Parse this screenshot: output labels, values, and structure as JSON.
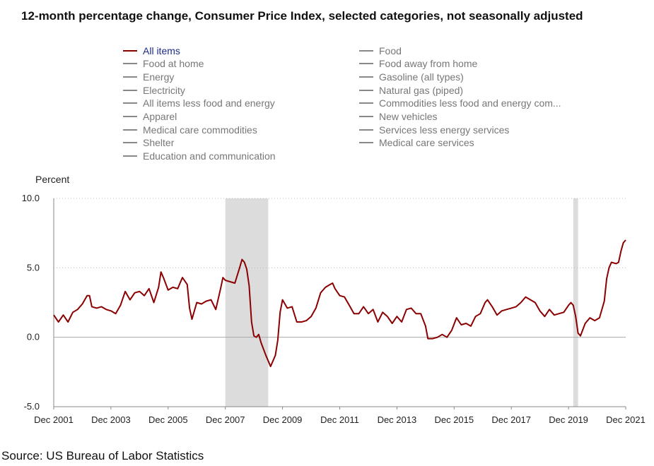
{
  "page": {
    "title": "12-month percentage change, Consumer Price Index, selected categories, not seasonally adjusted",
    "source": "Source: US Bureau of Labor Statistics"
  },
  "legend": {
    "items": [
      {
        "label": "All items",
        "active": true
      },
      {
        "label": "Food at home",
        "active": false
      },
      {
        "label": "Energy",
        "active": false
      },
      {
        "label": "Electricity",
        "active": false
      },
      {
        "label": "All items less food and energy",
        "active": false
      },
      {
        "label": "Apparel",
        "active": false
      },
      {
        "label": "Medical care commodities",
        "active": false
      },
      {
        "label": "Shelter",
        "active": false
      },
      {
        "label": "Education and communication",
        "active": false
      },
      {
        "label": "Food",
        "active": false
      },
      {
        "label": "Food away from home",
        "active": false
      },
      {
        "label": "Gasoline (all types)",
        "active": false
      },
      {
        "label": "Natural gas (piped)",
        "active": false
      },
      {
        "label": "Commodities less food and energy com...",
        "active": false
      },
      {
        "label": "New vehicles",
        "active": false
      },
      {
        "label": "Services less energy services",
        "active": false
      },
      {
        "label": "Medical care services",
        "active": false
      }
    ]
  },
  "colors": {
    "series": "#8b0000",
    "recession": "#dcdcdc",
    "legend_active_text": "#1c2a8c",
    "legend_inactive": "#888888"
  },
  "chart_data": {
    "type": "line",
    "ylabel": "Percent",
    "xlabel": "",
    "ylim": [
      -5.0,
      10.0
    ],
    "y_ticks": [
      10.0,
      5.0,
      0.0,
      -5.0
    ],
    "y_tick_labels": [
      "10.0",
      "5.0",
      "0.0",
      "-5.0"
    ],
    "x_tick_labels": [
      "Dec 2001",
      "Dec 2003",
      "Dec 2005",
      "Dec 2007",
      "Dec 2009",
      "Dec 2011",
      "Dec 2013",
      "Dec 2015",
      "Dec 2017",
      "Dec 2019",
      "Dec 2021"
    ],
    "x_tick_dates": [
      "2001-12",
      "2003-12",
      "2005-12",
      "2007-12",
      "2009-12",
      "2011-12",
      "2013-12",
      "2015-12",
      "2017-12",
      "2019-12",
      "2021-12"
    ],
    "x_start": "2001-12",
    "x_end": "2021-12",
    "recessions": [
      {
        "start": "2007-12",
        "end": "2009-06"
      },
      {
        "start": "2020-02",
        "end": "2020-04"
      }
    ],
    "series": [
      {
        "name": "All items",
        "points": [
          [
            "2001-12",
            1.6
          ],
          [
            "2002-02",
            1.1
          ],
          [
            "2002-04",
            1.6
          ],
          [
            "2002-06",
            1.1
          ],
          [
            "2002-08",
            1.8
          ],
          [
            "2002-10",
            2.0
          ],
          [
            "2002-12",
            2.4
          ],
          [
            "2003-02",
            3.0
          ],
          [
            "2003-03",
            3.0
          ],
          [
            "2003-04",
            2.2
          ],
          [
            "2003-06",
            2.1
          ],
          [
            "2003-08",
            2.2
          ],
          [
            "2003-10",
            2.0
          ],
          [
            "2003-12",
            1.9
          ],
          [
            "2004-02",
            1.7
          ],
          [
            "2004-04",
            2.3
          ],
          [
            "2004-06",
            3.3
          ],
          [
            "2004-08",
            2.7
          ],
          [
            "2004-10",
            3.2
          ],
          [
            "2004-12",
            3.3
          ],
          [
            "2005-02",
            3.0
          ],
          [
            "2005-04",
            3.5
          ],
          [
            "2005-06",
            2.5
          ],
          [
            "2005-08",
            3.6
          ],
          [
            "2005-09",
            4.7
          ],
          [
            "2005-10",
            4.3
          ],
          [
            "2005-12",
            3.4
          ],
          [
            "2006-02",
            3.6
          ],
          [
            "2006-04",
            3.5
          ],
          [
            "2006-06",
            4.3
          ],
          [
            "2006-08",
            3.8
          ],
          [
            "2006-09",
            2.1
          ],
          [
            "2006-10",
            1.3
          ],
          [
            "2006-12",
            2.5
          ],
          [
            "2007-02",
            2.4
          ],
          [
            "2007-04",
            2.6
          ],
          [
            "2007-06",
            2.7
          ],
          [
            "2007-08",
            2.0
          ],
          [
            "2007-10",
            3.5
          ],
          [
            "2007-11",
            4.3
          ],
          [
            "2007-12",
            4.1
          ],
          [
            "2008-02",
            4.0
          ],
          [
            "2008-04",
            3.9
          ],
          [
            "2008-06",
            5.0
          ],
          [
            "2008-07",
            5.6
          ],
          [
            "2008-08",
            5.4
          ],
          [
            "2008-09",
            4.9
          ],
          [
            "2008-10",
            3.7
          ],
          [
            "2008-11",
            1.1
          ],
          [
            "2008-12",
            0.1
          ],
          [
            "2009-01",
            0.0
          ],
          [
            "2009-02",
            0.2
          ],
          [
            "2009-03",
            -0.4
          ],
          [
            "2009-05",
            -1.3
          ],
          [
            "2009-07",
            -2.1
          ],
          [
            "2009-09",
            -1.3
          ],
          [
            "2009-10",
            -0.2
          ],
          [
            "2009-11",
            1.8
          ],
          [
            "2009-12",
            2.7
          ],
          [
            "2010-02",
            2.1
          ],
          [
            "2010-04",
            2.2
          ],
          [
            "2010-06",
            1.1
          ],
          [
            "2010-08",
            1.1
          ],
          [
            "2010-10",
            1.2
          ],
          [
            "2010-12",
            1.5
          ],
          [
            "2011-02",
            2.1
          ],
          [
            "2011-04",
            3.2
          ],
          [
            "2011-06",
            3.6
          ],
          [
            "2011-08",
            3.8
          ],
          [
            "2011-09",
            3.9
          ],
          [
            "2011-10",
            3.5
          ],
          [
            "2011-12",
            3.0
          ],
          [
            "2012-02",
            2.9
          ],
          [
            "2012-04",
            2.3
          ],
          [
            "2012-06",
            1.7
          ],
          [
            "2012-08",
            1.7
          ],
          [
            "2012-10",
            2.2
          ],
          [
            "2012-12",
            1.7
          ],
          [
            "2013-02",
            2.0
          ],
          [
            "2013-04",
            1.1
          ],
          [
            "2013-06",
            1.8
          ],
          [
            "2013-08",
            1.5
          ],
          [
            "2013-10",
            1.0
          ],
          [
            "2013-12",
            1.5
          ],
          [
            "2014-02",
            1.1
          ],
          [
            "2014-04",
            2.0
          ],
          [
            "2014-06",
            2.1
          ],
          [
            "2014-08",
            1.7
          ],
          [
            "2014-10",
            1.7
          ],
          [
            "2014-12",
            0.8
          ],
          [
            "2015-01",
            -0.1
          ],
          [
            "2015-03",
            -0.1
          ],
          [
            "2015-05",
            0.0
          ],
          [
            "2015-07",
            0.2
          ],
          [
            "2015-09",
            0.0
          ],
          [
            "2015-11",
            0.5
          ],
          [
            "2016-01",
            1.4
          ],
          [
            "2016-03",
            0.9
          ],
          [
            "2016-05",
            1.0
          ],
          [
            "2016-07",
            0.8
          ],
          [
            "2016-09",
            1.5
          ],
          [
            "2016-11",
            1.7
          ],
          [
            "2017-01",
            2.5
          ],
          [
            "2017-02",
            2.7
          ],
          [
            "2017-04",
            2.2
          ],
          [
            "2017-06",
            1.6
          ],
          [
            "2017-08",
            1.9
          ],
          [
            "2017-10",
            2.0
          ],
          [
            "2017-12",
            2.1
          ],
          [
            "2018-02",
            2.2
          ],
          [
            "2018-04",
            2.5
          ],
          [
            "2018-06",
            2.9
          ],
          [
            "2018-08",
            2.7
          ],
          [
            "2018-10",
            2.5
          ],
          [
            "2018-12",
            1.9
          ],
          [
            "2019-02",
            1.5
          ],
          [
            "2019-04",
            2.0
          ],
          [
            "2019-06",
            1.6
          ],
          [
            "2019-08",
            1.7
          ],
          [
            "2019-10",
            1.8
          ],
          [
            "2019-12",
            2.3
          ],
          [
            "2020-01",
            2.5
          ],
          [
            "2020-02",
            2.3
          ],
          [
            "2020-03",
            1.5
          ],
          [
            "2020-04",
            0.3
          ],
          [
            "2020-05",
            0.1
          ],
          [
            "2020-07",
            1.0
          ],
          [
            "2020-09",
            1.4
          ],
          [
            "2020-11",
            1.2
          ],
          [
            "2021-01",
            1.4
          ],
          [
            "2021-03",
            2.6
          ],
          [
            "2021-04",
            4.2
          ],
          [
            "2021-05",
            5.0
          ],
          [
            "2021-06",
            5.4
          ],
          [
            "2021-08",
            5.3
          ],
          [
            "2021-09",
            5.4
          ],
          [
            "2021-10",
            6.2
          ],
          [
            "2021-11",
            6.8
          ],
          [
            "2021-12",
            7.0
          ]
        ]
      }
    ]
  }
}
